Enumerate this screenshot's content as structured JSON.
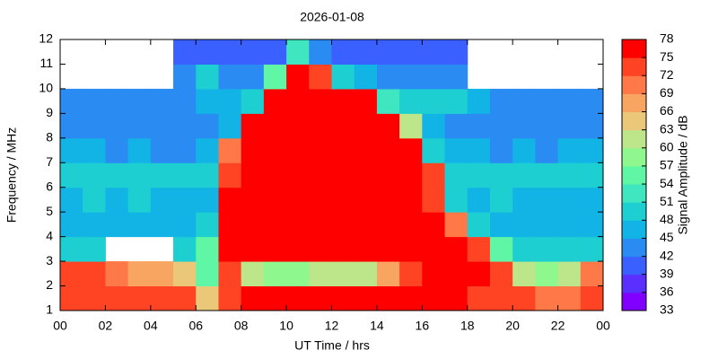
{
  "chart_data": {
    "type": "heatmap",
    "title": "2026-01-08",
    "xlabel": "UT Time / hrs",
    "ylabel": "Frequency / MHz",
    "cblabel": "Signal Amplitude / dB",
    "x": [
      0.5,
      1.5,
      2.5,
      3.5,
      4.5,
      5.5,
      6.5,
      7.5,
      8.5,
      9.5,
      10.5,
      11.5,
      12.5,
      13.5,
      14.5,
      15.5,
      16.5,
      17.5,
      18.5,
      19.5,
      20.5,
      21.5,
      22.5,
      23.5
    ],
    "y": [
      1.5,
      2.5,
      3.5,
      4.5,
      5.5,
      6.5,
      7.5,
      8.5,
      9.5,
      10.5,
      11.5
    ],
    "values": [
      [
        72,
        72,
        72,
        72,
        72,
        72,
        65,
        74,
        76,
        76,
        76,
        76,
        76,
        76,
        76,
        76,
        76,
        76,
        74,
        73,
        72,
        71,
        71,
        72
      ],
      [
        72,
        72,
        71,
        68,
        66,
        64,
        55,
        74,
        62,
        58,
        58,
        60,
        60,
        62,
        66,
        72,
        76,
        76,
        75,
        72,
        62,
        58,
        60,
        70
      ],
      [
        48,
        48,
        null,
        null,
        null,
        50,
        55,
        76,
        77,
        77,
        77,
        77,
        77,
        77,
        77,
        77,
        77,
        76,
        72,
        55,
        48,
        48,
        48,
        50
      ],
      [
        46,
        46,
        47,
        46,
        46,
        47,
        48,
        77,
        77,
        77,
        77,
        77,
        77,
        77,
        77,
        77,
        77,
        70,
        48,
        46,
        46,
        47,
        46,
        46
      ],
      [
        47,
        48,
        47,
        48,
        47,
        46,
        47,
        76,
        77,
        77,
        77,
        77,
        77,
        77,
        77,
        77,
        74,
        50,
        47,
        48,
        47,
        46,
        47,
        47
      ],
      [
        50,
        50,
        48,
        50,
        48,
        48,
        50,
        74,
        77,
        77,
        77,
        77,
        77,
        77,
        77,
        77,
        72,
        50,
        50,
        48,
        50,
        49,
        48,
        48
      ],
      [
        45,
        45,
        44,
        45,
        44,
        44,
        45,
        70,
        77,
        77,
        77,
        77,
        77,
        77,
        77,
        76,
        50,
        45,
        45,
        44,
        45,
        44,
        45,
        45
      ],
      [
        44,
        44,
        44,
        44,
        44,
        44,
        44,
        46,
        76,
        77,
        77,
        77,
        77,
        77,
        77,
        60,
        46,
        44,
        44,
        44,
        44,
        44,
        44,
        44
      ],
      [
        44,
        44,
        44,
        44,
        44,
        44,
        46,
        45,
        48,
        76,
        77,
        77,
        77,
        76,
        52,
        50,
        50,
        48,
        45,
        44,
        44,
        44,
        44,
        44
      ],
      [
        null,
        null,
        null,
        null,
        null,
        44,
        50,
        42,
        44,
        55,
        76,
        72,
        50,
        46,
        44,
        44,
        44,
        44,
        null,
        null,
        null,
        null,
        null,
        null
      ],
      [
        null,
        null,
        null,
        null,
        null,
        40,
        40,
        40,
        40,
        40,
        52,
        44,
        40,
        40,
        40,
        40,
        40,
        40,
        null,
        null,
        null,
        null,
        null,
        null
      ]
    ],
    "xlim": [
      0,
      24
    ],
    "xticks": [
      {
        "value": 0,
        "label": "00"
      },
      {
        "value": 2,
        "label": "02"
      },
      {
        "value": 4,
        "label": "04"
      },
      {
        "value": 6,
        "label": "06"
      },
      {
        "value": 8,
        "label": "08"
      },
      10,
      12,
      14,
      16,
      18,
      20,
      22,
      {
        "value": 24,
        "label": "00"
      }
    ],
    "ylim": [
      1,
      12
    ],
    "yticks": [
      1,
      2,
      3,
      4,
      5,
      6,
      7,
      8,
      9,
      10,
      11,
      12
    ],
    "cblim": [
      33,
      78
    ],
    "cbticks": [
      33,
      36,
      39,
      42,
      45,
      48,
      51,
      54,
      57,
      60,
      63,
      66,
      69,
      72,
      75,
      78
    ],
    "colors": [
      "#7f00ff",
      "#5a30ff",
      "#3a60ff",
      "#2a8cf2",
      "#12b4e6",
      "#1ecfd2",
      "#3fe6bf",
      "#5ff7a6",
      "#8ef88f",
      "#bde58a",
      "#ebc77a",
      "#f9a562",
      "#ff7848",
      "#ff4424",
      "#ff0000"
    ]
  }
}
